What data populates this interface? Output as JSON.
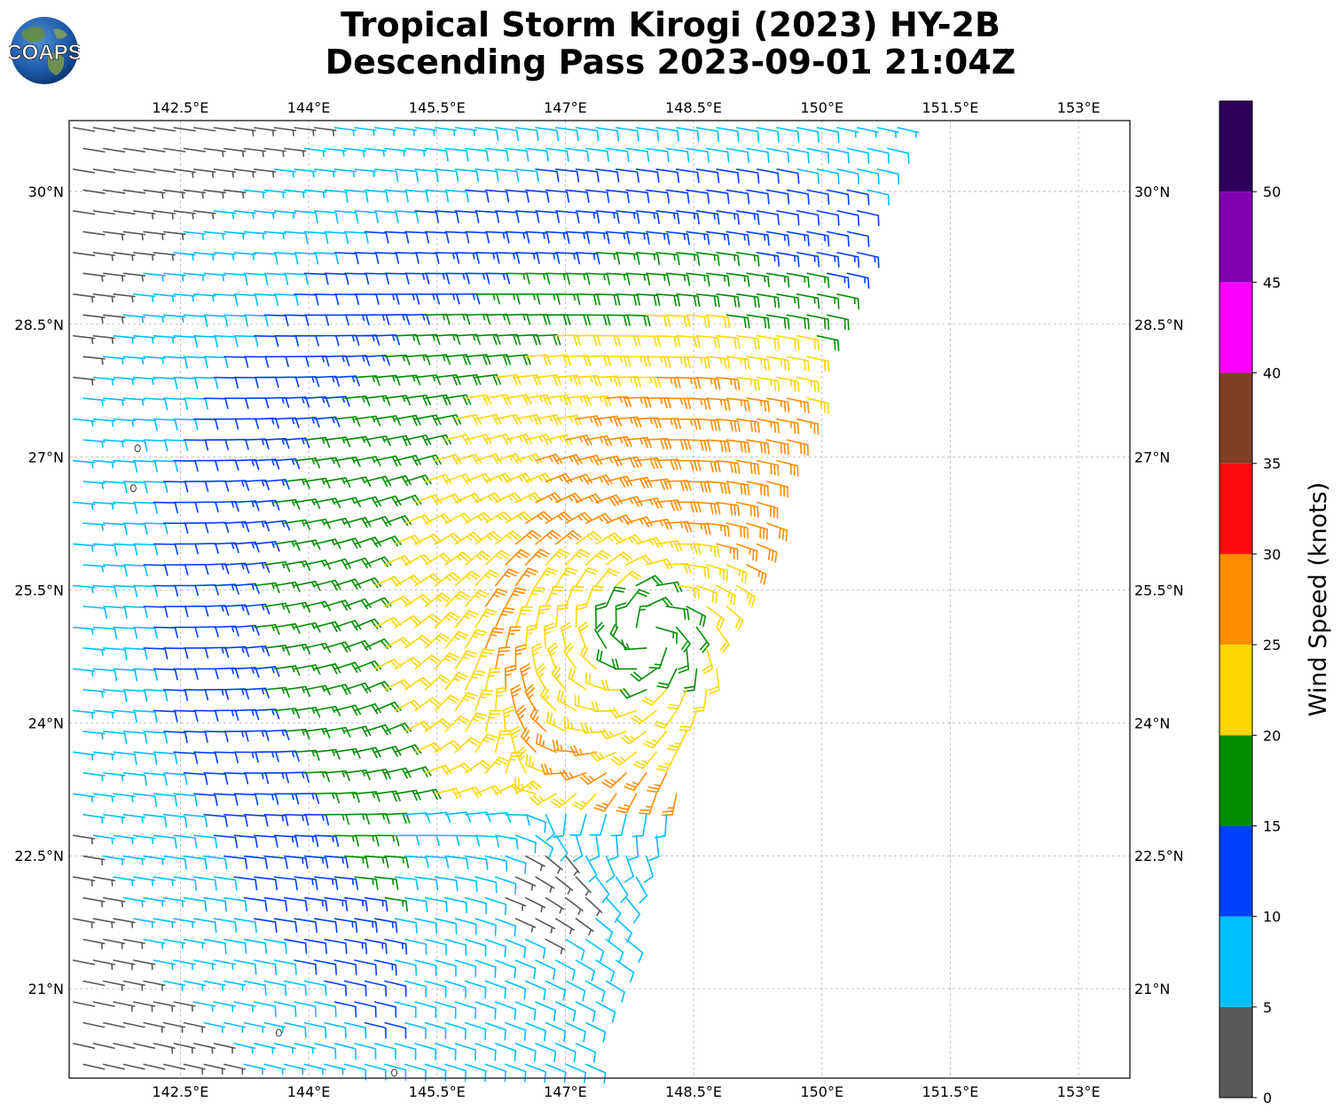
{
  "title": {
    "line1": "Tropical Storm Kirogi (2023) HY-2B",
    "line2": "Descending Pass 2023-09-01 21:04Z"
  },
  "logo": {
    "text": "COAPS",
    "icon": "globe-icon"
  },
  "map": {
    "lon_range": [
      141.2,
      153.6
    ],
    "lat_range": [
      19.99,
      30.8
    ],
    "lon_ticks": [
      "142.5°E",
      "144°E",
      "145.5°E",
      "147°E",
      "148.5°E",
      "150°E",
      "151.5°E",
      "153°E"
    ],
    "lat_ticks": [
      "30°N",
      "28.5°N",
      "27°N",
      "25.5°N",
      "24°N",
      "22.5°N",
      "21°N"
    ],
    "gridlines": true,
    "storm_center": {
      "lon": 148.0,
      "lat": 25.0
    },
    "islands": [
      {
        "lon": 142.0,
        "lat": 27.1
      },
      {
        "lon": 141.95,
        "lat": 26.65
      },
      {
        "lon": 143.65,
        "lat": 20.5
      },
      {
        "lon": 145.0,
        "lat": 20.05
      }
    ]
  },
  "colorbar": {
    "title": "Wind Speed (knots)",
    "ticks": [
      "0",
      "5",
      "10",
      "15",
      "20",
      "25",
      "30",
      "35",
      "40",
      "45",
      "50"
    ],
    "bins": [
      {
        "min": 0,
        "max": 5,
        "color": "#585858"
      },
      {
        "min": 5,
        "max": 10,
        "color": "#00bfff"
      },
      {
        "min": 10,
        "max": 15,
        "color": "#0040ff"
      },
      {
        "min": 15,
        "max": 20,
        "color": "#008f00"
      },
      {
        "min": 20,
        "max": 25,
        "color": "#ffd700"
      },
      {
        "min": 25,
        "max": 30,
        "color": "#ff8c00"
      },
      {
        "min": 30,
        "max": 35,
        "color": "#ff0d0d"
      },
      {
        "min": 35,
        "max": 40,
        "color": "#7f3f26"
      },
      {
        "min": 40,
        "max": 45,
        "color": "#ff00ff"
      },
      {
        "min": 45,
        "max": 50,
        "color": "#8000b0"
      },
      {
        "min": 50,
        "max": 55,
        "color": "#2d005e"
      }
    ]
  }
}
